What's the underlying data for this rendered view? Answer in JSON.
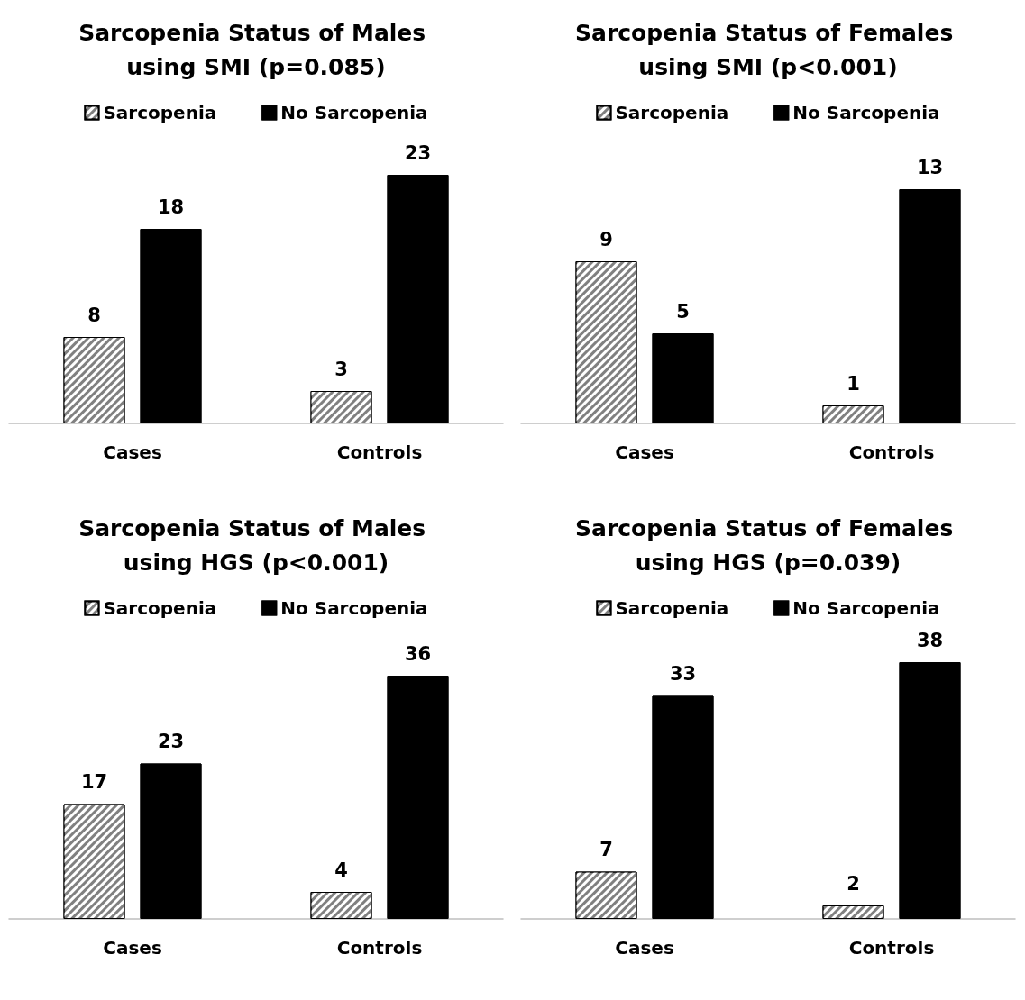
{
  "chart_data": [
    {
      "type": "bar",
      "title": "Sarcopenia Status of Males using SMI (p=0.085)",
      "categories": [
        "Cases",
        "Controls"
      ],
      "series": [
        {
          "name": "Sarcopenia",
          "color": "#808080",
          "values": [
            8,
            3
          ]
        },
        {
          "name": "No Sarcopenia",
          "color": "#000000",
          "values": [
            18,
            23
          ]
        }
      ],
      "legend": "top",
      "data_labels": true
    },
    {
      "type": "bar",
      "title": "Sarcopenia Status of Females using SMI (p<0.001)",
      "categories": [
        "Cases",
        "Controls"
      ],
      "series": [
        {
          "name": "Sarcopenia",
          "color": "#808080",
          "values": [
            9,
            1
          ]
        },
        {
          "name": "No Sarcopenia",
          "color": "#000000",
          "values": [
            5,
            13
          ]
        }
      ],
      "legend": "top",
      "data_labels": true
    },
    {
      "type": "bar",
      "title": "Sarcopenia Status of Males using HGS (p<0.001)",
      "categories": [
        "Cases",
        "Controls"
      ],
      "series": [
        {
          "name": "Sarcopenia",
          "color": "#808080",
          "values": [
            17,
            4
          ]
        },
        {
          "name": "No Sarcopenia",
          "color": "#000000",
          "values": [
            23,
            36
          ]
        }
      ],
      "legend": "top",
      "data_labels": true
    },
    {
      "type": "bar",
      "title": "Sarcopenia Status of Females using HGS (p=0.039)",
      "categories": [
        "Cases",
        "Controls"
      ],
      "series": [
        {
          "name": "Sarcopenia",
          "color": "#808080",
          "values": [
            7,
            2
          ]
        },
        {
          "name": "No Sarcopenia",
          "color": "#000000",
          "values": [
            33,
            38
          ]
        }
      ],
      "legend": "top",
      "data_labels": true
    }
  ]
}
